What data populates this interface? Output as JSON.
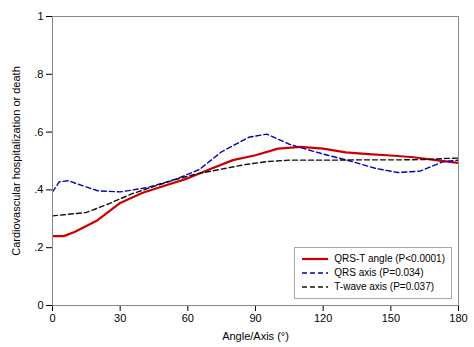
{
  "chart_data": {
    "type": "line",
    "xlabel": "Angle/Axis (°)",
    "ylabel": "Cardiovascular hospitalization or death",
    "xlim": [
      0,
      180
    ],
    "ylim": [
      0,
      1.0
    ],
    "xticks": [
      0,
      30,
      60,
      90,
      120,
      150,
      180
    ],
    "yticks": [
      0,
      {
        "value": 0.2,
        "label": ".2"
      },
      {
        "value": 0.4,
        "label": ".4"
      },
      {
        "value": 0.6,
        "label": ".6"
      },
      {
        "value": 0.8,
        "label": ".8"
      },
      1
    ],
    "grid": false,
    "legend": "lower right",
    "series": [
      {
        "name": "QRS-T angle (P<0.0001)",
        "color": "#cc0000",
        "line_style": "solid",
        "x": [
          0,
          5,
          10,
          20,
          30,
          40,
          50,
          60,
          70,
          80,
          90,
          100,
          110,
          120,
          130,
          140,
          150,
          160,
          170,
          180
        ],
        "values": [
          0.24,
          0.24,
          0.255,
          0.295,
          0.355,
          0.39,
          0.415,
          0.44,
          0.472,
          0.503,
          0.52,
          0.543,
          0.549,
          0.543,
          0.53,
          0.524,
          0.519,
          0.513,
          0.503,
          0.493
        ]
      },
      {
        "name": "QRS axis (P=0.034)",
        "color": "#0000bb",
        "line_style": "dashed",
        "x": [
          0,
          3,
          7,
          12,
          20,
          30,
          42,
          55,
          65,
          75,
          87,
          95,
          105,
          115,
          122,
          132,
          143,
          153,
          163,
          173,
          180
        ],
        "values": [
          0.393,
          0.428,
          0.432,
          0.418,
          0.397,
          0.393,
          0.408,
          0.438,
          0.47,
          0.532,
          0.582,
          0.593,
          0.558,
          0.535,
          0.52,
          0.5,
          0.475,
          0.46,
          0.465,
          0.497,
          0.503
        ]
      },
      {
        "name": "T-wave axis (P=0.037)",
        "color": "#111111",
        "line_style": "dashed",
        "x": [
          0,
          5,
          15,
          25,
          35,
          45,
          55,
          65,
          75,
          85,
          95,
          105,
          115,
          125,
          135,
          145,
          155,
          165,
          175,
          180
        ],
        "values": [
          0.31,
          0.314,
          0.322,
          0.352,
          0.386,
          0.412,
          0.437,
          0.457,
          0.472,
          0.487,
          0.498,
          0.503,
          0.503,
          0.503,
          0.504,
          0.504,
          0.504,
          0.505,
          0.509,
          0.51
        ]
      }
    ]
  }
}
